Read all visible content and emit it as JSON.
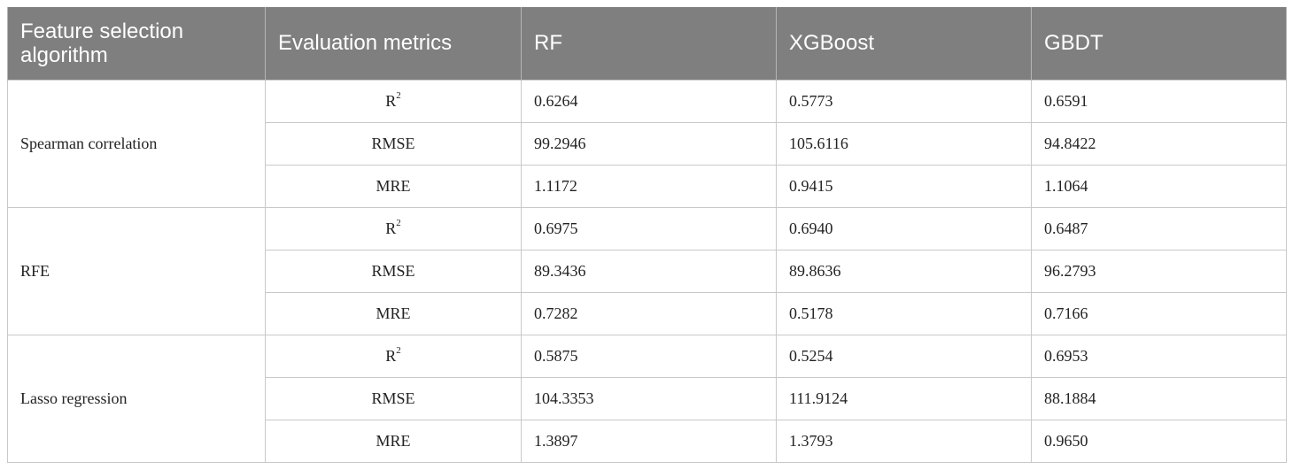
{
  "table": {
    "headers": [
      "Feature selection algorithm",
      "Evaluation metrics",
      "RF",
      "XGBoost",
      "GBDT"
    ],
    "groups": [
      {
        "algorithm": "Spearman correlation",
        "rows": [
          {
            "metric": "R",
            "metric_sup": "2",
            "rf": "0.6264",
            "xgboost": "0.5773",
            "gbdt": "0.6591"
          },
          {
            "metric": "RMSE",
            "metric_sup": "",
            "rf": "99.2946",
            "xgboost": "105.6116",
            "gbdt": "94.8422"
          },
          {
            "metric": "MRE",
            "metric_sup": "",
            "rf": "1.1172",
            "xgboost": "0.9415",
            "gbdt": "1.1064"
          }
        ]
      },
      {
        "algorithm": "RFE",
        "rows": [
          {
            "metric": "R",
            "metric_sup": "2",
            "rf": "0.6975",
            "xgboost": "0.6940",
            "gbdt": "0.6487"
          },
          {
            "metric": "RMSE",
            "metric_sup": "",
            "rf": "89.3436",
            "xgboost": "89.8636",
            "gbdt": "96.2793"
          },
          {
            "metric": "MRE",
            "metric_sup": "",
            "rf": "0.7282",
            "xgboost": "0.5178",
            "gbdt": "0.7166"
          }
        ]
      },
      {
        "algorithm": "Lasso regression",
        "rows": [
          {
            "metric": "R",
            "metric_sup": "2",
            "rf": "0.5875",
            "xgboost": "0.5254",
            "gbdt": "0.6953"
          },
          {
            "metric": "RMSE",
            "metric_sup": "",
            "rf": "104.3353",
            "xgboost": "111.9124",
            "gbdt": "88.1884"
          },
          {
            "metric": "MRE",
            "metric_sup": "",
            "rf": "1.3897",
            "xgboost": "1.3793",
            "gbdt": "0.9650"
          }
        ]
      }
    ]
  },
  "colors": {
    "header_bg": "#7f7f7f",
    "header_text": "#ffffff",
    "grid": "#c9c9c9"
  }
}
